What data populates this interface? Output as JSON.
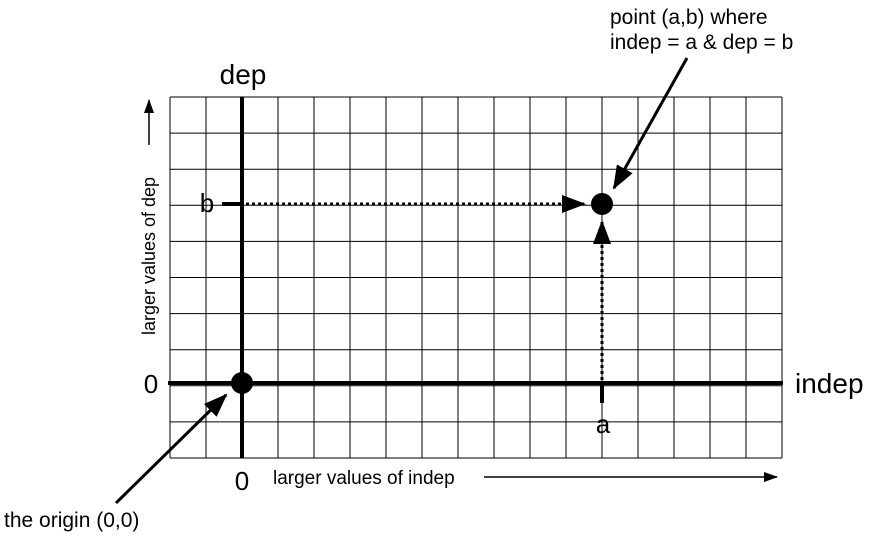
{
  "labels": {
    "y_axis": "dep",
    "x_axis": "indep",
    "origin_x_tick": "0",
    "origin_y_tick": "0",
    "point_x_tick": "a",
    "point_y_tick": "b",
    "y_direction": "larger values of dep",
    "x_direction": "larger values of indep",
    "point_note_line1": "point (a,b) where",
    "point_note_line2": "indep = a & dep = b",
    "origin_note": "the origin (0,0)"
  },
  "colors": {
    "ink": "#000000",
    "grid": "#000000",
    "background": "#ffffff"
  }
}
